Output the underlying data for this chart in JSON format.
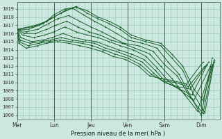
{
  "bg_color": "#cce8e0",
  "grid_color": "#99ccbb",
  "line_color": "#1a5c28",
  "xlabel": "Pression niveau de la mer( hPa )",
  "ylim": [
    1005.5,
    1019.8
  ],
  "yticks": [
    1006,
    1007,
    1008,
    1009,
    1010,
    1011,
    1012,
    1013,
    1014,
    1015,
    1016,
    1017,
    1018,
    1019
  ],
  "xtick_labels": [
    "Mer",
    "Lun",
    "Jeu",
    "Ven",
    "Sam",
    "Dim"
  ],
  "xtick_positions": [
    0.0,
    1.0,
    2.0,
    3.0,
    4.0,
    5.0
  ],
  "xlim": [
    0.0,
    5.5
  ],
  "vlines": [
    0.0,
    1.0,
    2.0,
    3.0,
    4.0,
    5.0
  ],
  "linewidth": 0.7,
  "marker_size": 2.0,
  "series": [
    {
      "x": [
        0.0,
        0.5,
        0.8,
        1.0,
        1.3,
        1.6,
        1.9,
        2.2,
        2.5,
        2.8,
        3.1,
        3.5,
        3.9,
        4.2,
        4.5,
        4.8,
        5.05,
        5.3
      ],
      "y": [
        1016.5,
        1017.0,
        1017.5,
        1018.3,
        1019.0,
        1019.2,
        1018.8,
        1018.0,
        1017.5,
        1016.8,
        1015.8,
        1015.2,
        1014.8,
        1013.5,
        1012.0,
        1009.2,
        1007.8,
        1012.0
      ]
    },
    {
      "x": [
        0.0,
        0.4,
        0.7,
        1.0,
        1.3,
        1.6,
        1.9,
        2.2,
        2.5,
        2.8,
        3.1,
        3.5,
        3.9,
        4.2,
        4.5,
        4.8,
        5.1,
        5.35
      ],
      "y": [
        1016.5,
        1016.8,
        1017.2,
        1018.0,
        1018.8,
        1019.3,
        1018.5,
        1017.8,
        1017.2,
        1016.5,
        1015.5,
        1015.0,
        1014.5,
        1013.0,
        1011.5,
        1008.5,
        1006.3,
        1012.5
      ]
    },
    {
      "x": [
        0.0,
        0.3,
        0.6,
        0.9,
        1.2,
        1.5,
        1.8,
        2.1,
        2.4,
        2.7,
        3.0,
        3.4,
        3.8,
        4.1,
        4.4,
        4.75,
        5.0,
        5.3
      ],
      "y": [
        1016.5,
        1016.5,
        1017.0,
        1017.8,
        1018.5,
        1019.1,
        1018.3,
        1017.5,
        1016.8,
        1016.0,
        1015.2,
        1014.8,
        1014.2,
        1012.5,
        1011.0,
        1008.0,
        1006.0,
        1013.0
      ]
    },
    {
      "x": [
        0.0,
        0.25,
        0.55,
        0.85,
        1.1,
        1.4,
        1.7,
        2.0,
        2.3,
        2.6,
        2.9,
        3.3,
        3.7,
        4.0,
        4.35,
        4.7,
        5.05,
        5.35
      ],
      "y": [
        1016.5,
        1016.2,
        1016.5,
        1017.2,
        1017.8,
        1018.2,
        1017.5,
        1016.8,
        1016.2,
        1015.5,
        1014.8,
        1014.5,
        1013.8,
        1012.2,
        1010.8,
        1008.2,
        1006.2,
        1012.8
      ]
    },
    {
      "x": [
        0.0,
        0.2,
        0.5,
        0.8,
        1.05,
        1.35,
        1.65,
        1.95,
        2.25,
        2.55,
        2.85,
        3.2,
        3.6,
        3.9,
        4.2,
        4.55,
        4.9,
        5.3
      ],
      "y": [
        1016.5,
        1016.0,
        1016.0,
        1016.5,
        1017.0,
        1017.5,
        1016.8,
        1016.2,
        1015.8,
        1015.2,
        1014.8,
        1014.2,
        1013.5,
        1012.0,
        1010.5,
        1008.5,
        1006.5,
        1012.2
      ]
    },
    {
      "x": [
        0.0,
        0.15,
        0.45,
        0.75,
        1.0,
        1.3,
        1.6,
        1.9,
        2.2,
        2.5,
        2.8,
        3.15,
        3.5,
        3.8,
        4.1,
        4.45,
        4.8,
        5.25
      ],
      "y": [
        1016.5,
        1015.8,
        1015.5,
        1015.8,
        1016.2,
        1016.8,
        1016.2,
        1015.8,
        1015.5,
        1015.0,
        1014.5,
        1014.0,
        1013.2,
        1011.8,
        1010.2,
        1009.0,
        1007.8,
        1012.0
      ]
    },
    {
      "x": [
        0.0,
        0.1,
        0.4,
        0.7,
        0.95,
        1.25,
        1.55,
        1.85,
        2.15,
        2.45,
        2.75,
        3.1,
        3.45,
        3.75,
        4.05,
        4.4,
        4.75,
        5.2
      ],
      "y": [
        1016.5,
        1015.5,
        1015.0,
        1015.2,
        1015.5,
        1016.0,
        1015.5,
        1015.2,
        1015.0,
        1014.5,
        1014.0,
        1013.5,
        1012.8,
        1011.5,
        1010.0,
        1009.2,
        1008.5,
        1012.5
      ]
    },
    {
      "x": [
        0.0,
        0.08,
        0.35,
        0.65,
        0.9,
        1.2,
        1.5,
        1.8,
        2.1,
        2.4,
        2.7,
        3.05,
        3.4,
        3.7,
        4.0,
        4.35,
        4.7,
        5.15
      ],
      "y": [
        1016.5,
        1015.2,
        1014.8,
        1015.0,
        1015.2,
        1015.5,
        1015.2,
        1015.0,
        1014.8,
        1014.2,
        1013.8,
        1013.2,
        1012.5,
        1011.2,
        1010.0,
        1009.5,
        1009.2,
        1012.2
      ]
    },
    {
      "x": [
        0.0,
        0.06,
        0.3,
        0.6,
        0.85,
        1.15,
        1.45,
        1.75,
        2.05,
        2.35,
        2.65,
        3.0,
        3.35,
        3.65,
        3.95,
        4.3,
        4.65,
        5.1
      ],
      "y": [
        1016.5,
        1015.0,
        1014.5,
        1014.8,
        1015.0,
        1015.2,
        1015.0,
        1014.8,
        1014.5,
        1014.0,
        1013.5,
        1013.0,
        1012.2,
        1011.0,
        1010.2,
        1010.0,
        1009.5,
        1012.0
      ]
    },
    {
      "x": [
        0.0,
        0.05,
        0.25,
        0.55,
        0.8,
        1.1,
        1.4,
        1.7,
        2.0,
        2.3,
        2.6,
        2.95,
        3.3,
        3.6,
        3.9,
        4.25,
        4.6,
        5.05
      ],
      "y": [
        1016.5,
        1014.8,
        1014.2,
        1014.5,
        1014.8,
        1015.0,
        1014.8,
        1014.5,
        1014.2,
        1013.8,
        1013.2,
        1012.8,
        1012.0,
        1010.8,
        1010.5,
        1010.2,
        1009.8,
        1012.5
      ]
    }
  ]
}
